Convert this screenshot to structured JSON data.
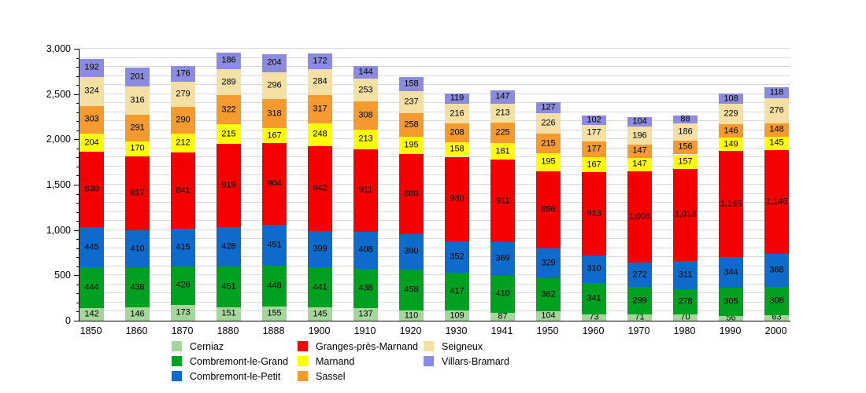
{
  "chart_data": {
    "type": "bar",
    "stacked": true,
    "title": "",
    "xlabel": "",
    "ylabel": "",
    "categories": [
      "1850",
      "1860",
      "1870",
      "1880",
      "1888",
      "1900",
      "1910",
      "1920",
      "1930",
      "1941",
      "1950",
      "1960",
      "1970",
      "1980",
      "1990",
      "2000"
    ],
    "ylim": [
      0,
      3000
    ],
    "ytick_step": 500,
    "grid_step": 100,
    "grid": true,
    "legend_position": "bottom",
    "series": [
      {
        "name": "Cerniaz",
        "color": "#a3d89a",
        "values": [
          142,
          146,
          173,
          151,
          155,
          145,
          137,
          110,
          109,
          87,
          104,
          73,
          71,
          70,
          56,
          63
        ]
      },
      {
        "name": "Combremont-le-Grand",
        "color": "#00a121",
        "values": [
          444,
          438,
          426,
          451,
          448,
          441,
          438,
          458,
          417,
          410,
          362,
          341,
          299,
          278,
          305,
          308
        ]
      },
      {
        "name": "Combremont-le-Petit",
        "color": "#0f6bcb",
        "values": [
          445,
          410,
          415,
          428,
          451,
          399,
          408,
          390,
          352,
          369,
          329,
          310,
          272,
          311,
          344,
          368
        ]
      },
      {
        "name": "Granges-près-Marnand",
        "color": "#f40000",
        "values": [
          830,
          817,
          841,
          919,
          904,
          942,
          911,
          880,
          930,
          911,
          856,
          913,
          1006,
          1018,
          1165,
          1146
        ]
      },
      {
        "name": "Marnand",
        "color": "#ffff00",
        "values": [
          204,
          170,
          212,
          215,
          167,
          248,
          213,
          195,
          158,
          181,
          195,
          167,
          147,
          157,
          149,
          145
        ]
      },
      {
        "name": "Sassel",
        "color": "#f49a2e",
        "values": [
          303,
          291,
          290,
          322,
          318,
          317,
          308,
          258,
          208,
          225,
          215,
          177,
          147,
          156,
          146,
          148
        ]
      },
      {
        "name": "Seigneux",
        "color": "#f5e0a3",
        "values": [
          324,
          316,
          279,
          289,
          296,
          284,
          253,
          237,
          216,
          213,
          226,
          177,
          196,
          186,
          229,
          276
        ]
      },
      {
        "name": "Villars-Bramard",
        "color": "#8b8be0",
        "values": [
          192,
          201,
          176,
          186,
          204,
          172,
          144,
          158,
          119,
          147,
          127,
          102,
          104,
          88,
          108,
          118
        ]
      }
    ],
    "legend_columns": [
      [
        0,
        1,
        2
      ],
      [
        3,
        4,
        5
      ],
      [
        6,
        7
      ]
    ]
  },
  "layout_text": {
    "y_axis_ticks": [
      "0",
      "500",
      "1000",
      "1500",
      "2000",
      "2500",
      "3000"
    ]
  }
}
